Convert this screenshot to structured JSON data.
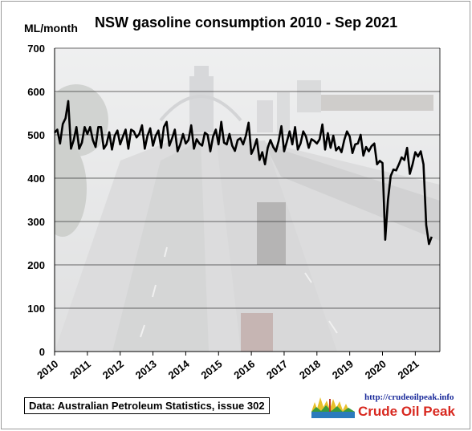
{
  "chart_data": {
    "type": "line",
    "title": "NSW gasoline consumption  2010 - Sep 2021",
    "ylabel": "ML/month",
    "xlabel": "",
    "ylim": [
      0,
      700
    ],
    "xlim": [
      2010,
      2021.75
    ],
    "y_ticks": [
      "0",
      "100",
      "200",
      "300",
      "400",
      "500",
      "600",
      "700"
    ],
    "x_ticks": [
      "2010",
      "2011",
      "2012",
      "2013",
      "2014",
      "2015",
      "2016",
      "2017",
      "2018",
      "2019",
      "2020",
      "2021"
    ],
    "grid": "horizontal",
    "line_color": "#000000",
    "background": "photo of Sydney Harbour Bridge highway (faded)",
    "series": [
      {
        "name": "",
        "start": "2010-01",
        "frequency": "monthly",
        "values": [
          505,
          512,
          480,
          525,
          538,
          578,
          468,
          488,
          518,
          468,
          482,
          518,
          502,
          518,
          488,
          472,
          518,
          518,
          468,
          478,
          506,
          466,
          498,
          510,
          478,
          496,
          512,
          468,
          512,
          508,
          494,
          502,
          522,
          468,
          498,
          515,
          475,
          498,
          510,
          470,
          518,
          530,
          475,
          492,
          512,
          462,
          478,
          502,
          480,
          488,
          522,
          468,
          490,
          480,
          475,
          505,
          500,
          462,
          496,
          512,
          478,
          530,
          482,
          478,
          502,
          475,
          463,
          488,
          492,
          478,
          498,
          528,
          456,
          470,
          490,
          442,
          460,
          432,
          470,
          488,
          472,
          462,
          486,
          520,
          462,
          484,
          508,
          478,
          518,
          466,
          480,
          508,
          496,
          470,
          490,
          486,
          480,
          490,
          524,
          466,
          504,
          470,
          498,
          464,
          472,
          460,
          488,
          508,
          496,
          458,
          478,
          480,
          500,
          452,
          472,
          462,
          474,
          480,
          432,
          440,
          435,
          258,
          350,
          405,
          420,
          418,
          432,
          448,
          442,
          470,
          410,
          432,
          460,
          450,
          462,
          432,
          292,
          248,
          265
        ]
      }
    ]
  },
  "source_box": "Data: Australian Petroleum Statistics, issue 302",
  "logo": {
    "url": "http://crudeoilpeak.info",
    "name": "Crude Oil Peak"
  }
}
